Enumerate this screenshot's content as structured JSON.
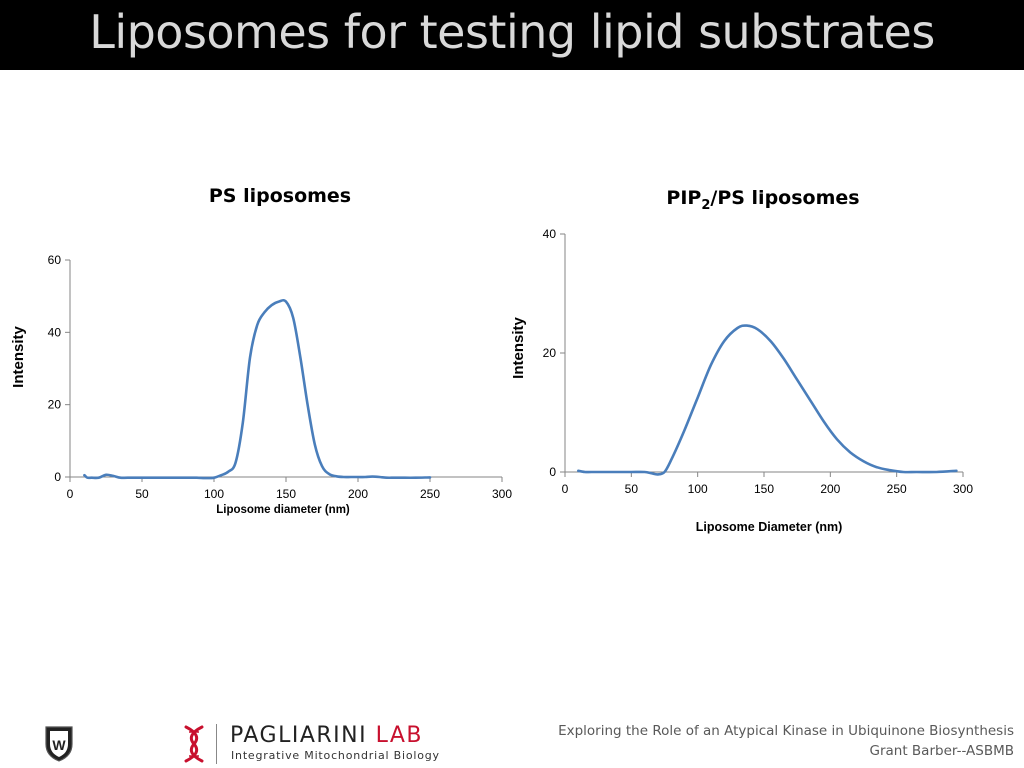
{
  "slide": {
    "title": "Liposomes for testing lipid substrates"
  },
  "charts": {
    "left": {
      "title": "PS liposomes",
      "ylabel": "Intensity",
      "xlabel": "Liposome diameter (nm)",
      "xticks": [
        "0",
        "50",
        "100",
        "150",
        "200",
        "250",
        "300"
      ],
      "yticks": [
        "0",
        "20",
        "40",
        "60"
      ]
    },
    "right": {
      "title_main": "PIP",
      "title_sub": "2",
      "title_rest": "/PS liposomes",
      "ylabel": "Intensity",
      "xlabel": "Liposome Diameter (nm)",
      "xticks": [
        "0",
        "50",
        "100",
        "150",
        "200",
        "250",
        "300"
      ],
      "yticks": [
        "0",
        "20",
        "40"
      ]
    }
  },
  "chart_data": [
    {
      "type": "line",
      "title": "PS liposomes",
      "xlabel": "Liposome diameter (nm)",
      "ylabel": "Intensity",
      "xlim": [
        0,
        300
      ],
      "ylim": [
        0,
        60
      ],
      "grid": false,
      "line_color": "#4a7ebb",
      "x": [
        10,
        12,
        15,
        20,
        25,
        30,
        35,
        40,
        50,
        60,
        70,
        80,
        88,
        95,
        100,
        105,
        110,
        115,
        120,
        125,
        130,
        135,
        140,
        145,
        150,
        155,
        160,
        165,
        170,
        175,
        180,
        185,
        190,
        195,
        200,
        205,
        210,
        215,
        220,
        225,
        230,
        240,
        250
      ],
      "y": [
        0.5,
        -0.2,
        -0.2,
        -0.2,
        0.6,
        0.3,
        -0.2,
        -0.2,
        -0.2,
        -0.2,
        -0.2,
        -0.2,
        -0.2,
        -0.3,
        -0.2,
        0.5,
        1.5,
        4,
        15,
        33,
        42,
        45.5,
        47.5,
        48.5,
        48.5,
        44,
        33,
        20,
        9,
        3,
        0.8,
        0.2,
        0,
        0,
        0,
        0,
        0.1,
        0,
        -0.2,
        -0.2,
        -0.2,
        -0.2,
        -0.1
      ]
    },
    {
      "type": "line",
      "title": "PIP2/PS liposomes",
      "xlabel": "Liposome Diameter (nm)",
      "ylabel": "Intensity",
      "xlim": [
        0,
        300
      ],
      "ylim": [
        0,
        40
      ],
      "grid": false,
      "line_color": "#4a7ebb",
      "x": [
        10,
        15,
        20,
        30,
        40,
        50,
        60,
        65,
        70,
        75,
        80,
        90,
        100,
        110,
        120,
        130,
        137,
        145,
        155,
        165,
        175,
        185,
        195,
        205,
        215,
        225,
        235,
        245,
        255,
        265,
        280,
        295
      ],
      "y": [
        0.2,
        0,
        0,
        0,
        0,
        0,
        0,
        -0.2,
        -0.4,
        0,
        2,
        7,
        12.5,
        18,
        22,
        24.2,
        24.6,
        24,
        22,
        19,
        15.5,
        12,
        8.5,
        5.5,
        3.3,
        1.8,
        0.8,
        0.3,
        0,
        0,
        0,
        0.2
      ]
    }
  ],
  "footer": {
    "line1": "Exploring the Role of an Atypical Kinase in Ubiquinone Biosynthesis",
    "line2": "Grant Barber--ASBMB",
    "lab_name_main": "PAGLIARINI ",
    "lab_name_accent": "LAB",
    "lab_subtitle": "Integrative Mitochondrial Biology",
    "crest_letter": "W"
  },
  "colors": {
    "title_bar": "#000000",
    "title_text": "#d9d9d9",
    "series": "#4a7ebb",
    "lab_accent": "#c8102e"
  }
}
